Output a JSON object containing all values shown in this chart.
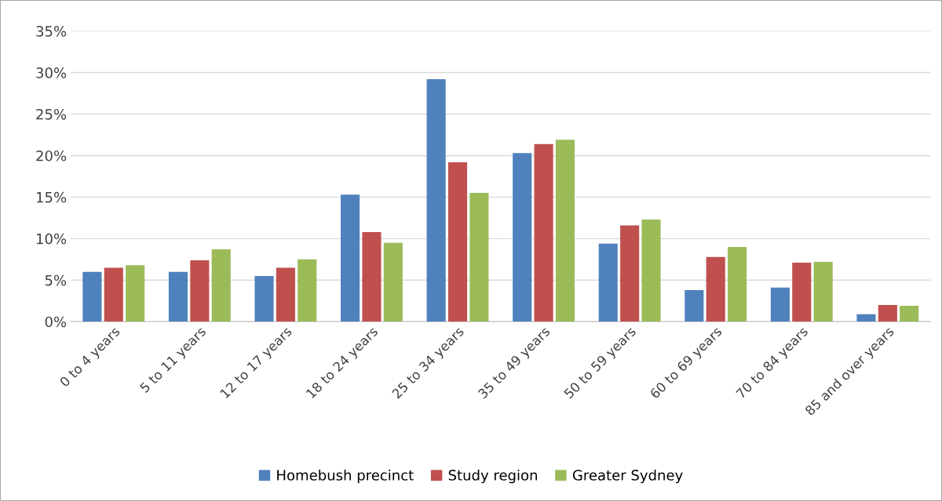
{
  "chart_data": {
    "type": "bar",
    "categories": [
      "0 to 4 years",
      "5 to 11 years",
      "12 to 17 years",
      "18 to 24 years",
      "25 to 34 years",
      "35 to 49 years",
      "50 to 59 years",
      "60 to 69 years",
      "70 to 84 years",
      "85 and over years"
    ],
    "series": [
      {
        "name": "Homebush precinct",
        "color": "#4f81bd",
        "values": [
          6.0,
          6.0,
          5.5,
          15.3,
          29.2,
          20.3,
          9.4,
          3.8,
          4.1,
          0.9
        ]
      },
      {
        "name": "Study region",
        "color": "#c0504d",
        "values": [
          6.5,
          7.4,
          6.5,
          10.8,
          19.2,
          21.4,
          11.6,
          7.8,
          7.1,
          2.0
        ]
      },
      {
        "name": "Greater Sydney",
        "color": "#9bbb59",
        "values": [
          6.8,
          8.7,
          7.5,
          9.5,
          15.5,
          21.9,
          12.3,
          9.0,
          7.2,
          1.9
        ]
      }
    ],
    "ylim": [
      0,
      35
    ],
    "yticks": [
      {
        "value": 0,
        "label": "0%"
      },
      {
        "value": 5,
        "label": "5%"
      },
      {
        "value": 10,
        "label": "10%"
      },
      {
        "value": 15,
        "label": "15%"
      },
      {
        "value": 20,
        "label": "20%"
      },
      {
        "value": 25,
        "label": "25%"
      },
      {
        "value": 30,
        "label": "30%"
      },
      {
        "value": 35,
        "label": "35%"
      }
    ],
    "grid": "y",
    "legend": "bottom"
  }
}
